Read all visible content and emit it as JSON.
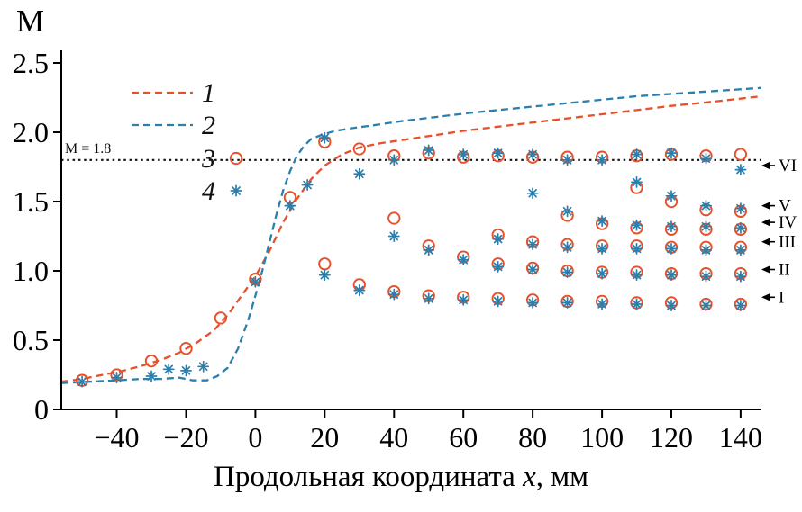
{
  "figure": {
    "y_axis_title": "M",
    "x_title_prefix": "Продольная координата ",
    "x_title_var": "x",
    "x_title_suffix": ", мм"
  },
  "chart_data": {
    "type": "line+scatter",
    "title": "",
    "xlabel": "Продольная координата x, мм",
    "ylabel": "M",
    "xlim": [
      -56,
      146
    ],
    "ylim": [
      0,
      2.5
    ],
    "grid": false,
    "x_tick_values": [
      -40,
      -20,
      0,
      20,
      40,
      60,
      80,
      100,
      120,
      140
    ],
    "x_tick_labels": [
      "−40",
      "−20",
      "0",
      "20",
      "40",
      "60",
      "80",
      "100",
      "120",
      "140"
    ],
    "y_tick_values": [
      0,
      0.5,
      1,
      1.5,
      2,
      2.5
    ],
    "y_tick_labels": [
      "0",
      "0.5",
      "1.0",
      "1.5",
      "2.0",
      "2.5"
    ],
    "reference_line": {
      "y": 1.8,
      "label": "M = 1.8"
    },
    "legend_position": "upper-left-inside",
    "legend": [
      {
        "label": "1",
        "marker": "dashed-line",
        "color": "#e8502a"
      },
      {
        "label": "2",
        "marker": "dashed-line",
        "color": "#2b7fad"
      },
      {
        "label": "3",
        "marker": "open-circle",
        "color": "#e8502a"
      },
      {
        "label": "4",
        "marker": "asterisk",
        "color": "#2b7fad"
      }
    ],
    "series": [
      {
        "name": "1",
        "type": "line",
        "style": "dashed",
        "color": "#e8502a",
        "points": [
          [
            -56,
            0.2
          ],
          [
            -50,
            0.22
          ],
          [
            -44,
            0.25
          ],
          [
            -38,
            0.28
          ],
          [
            -32,
            0.32
          ],
          [
            -27,
            0.36
          ],
          [
            -22,
            0.41
          ],
          [
            -17,
            0.48
          ],
          [
            -12,
            0.57
          ],
          [
            -8,
            0.68
          ],
          [
            -4,
            0.82
          ],
          [
            0,
            0.96
          ],
          [
            4,
            1.14
          ],
          [
            8,
            1.35
          ],
          [
            12,
            1.52
          ],
          [
            16,
            1.66
          ],
          [
            20,
            1.76
          ],
          [
            25,
            1.84
          ],
          [
            30,
            1.89
          ],
          [
            36,
            1.92
          ],
          [
            44,
            1.95
          ],
          [
            52,
            1.98
          ],
          [
            60,
            2.01
          ],
          [
            70,
            2.04
          ],
          [
            80,
            2.07
          ],
          [
            90,
            2.1
          ],
          [
            100,
            2.13
          ],
          [
            110,
            2.16
          ],
          [
            120,
            2.19
          ],
          [
            132,
            2.22
          ],
          [
            146,
            2.26
          ]
        ]
      },
      {
        "name": "2",
        "type": "line",
        "style": "dashed",
        "color": "#2b7fad",
        "points": [
          [
            -56,
            0.19
          ],
          [
            -48,
            0.2
          ],
          [
            -40,
            0.21
          ],
          [
            -33,
            0.22
          ],
          [
            -27,
            0.22
          ],
          [
            -22,
            0.23
          ],
          [
            -18,
            0.21
          ],
          [
            -14,
            0.21
          ],
          [
            -11,
            0.24
          ],
          [
            -8,
            0.3
          ],
          [
            -5,
            0.44
          ],
          [
            -2,
            0.65
          ],
          [
            0,
            0.82
          ],
          [
            2,
            1.0
          ],
          [
            4,
            1.2
          ],
          [
            6,
            1.4
          ],
          [
            8,
            1.58
          ],
          [
            10,
            1.72
          ],
          [
            12,
            1.83
          ],
          [
            14,
            1.9
          ],
          [
            16,
            1.95
          ],
          [
            19,
            1.98
          ],
          [
            23,
            2.01
          ],
          [
            28,
            2.03
          ],
          [
            34,
            2.05
          ],
          [
            42,
            2.08
          ],
          [
            52,
            2.11
          ],
          [
            62,
            2.14
          ],
          [
            74,
            2.17
          ],
          [
            86,
            2.2
          ],
          [
            98,
            2.23
          ],
          [
            110,
            2.26
          ],
          [
            122,
            2.28
          ],
          [
            134,
            2.3
          ],
          [
            146,
            2.32
          ]
        ]
      },
      {
        "name": "3",
        "type": "scatter",
        "marker": "open-circle",
        "color": "#e8502a",
        "points": [
          [
            -50,
            0.21
          ],
          [
            -40,
            0.25
          ],
          [
            -30,
            0.35
          ],
          [
            -20,
            0.44
          ],
          [
            -10,
            0.66
          ],
          [
            0,
            0.94
          ],
          [
            10,
            1.53
          ],
          [
            20,
            1.93
          ],
          [
            30,
            1.88
          ],
          [
            40,
            1.83
          ],
          [
            50,
            1.85
          ],
          [
            60,
            1.82
          ],
          [
            70,
            1.83
          ],
          [
            80,
            1.82
          ],
          [
            90,
            1.82
          ],
          [
            100,
            1.82
          ],
          [
            110,
            1.83
          ],
          [
            120,
            1.84
          ],
          [
            130,
            1.83
          ],
          [
            140,
            1.84
          ],
          [
            110,
            1.6
          ],
          [
            120,
            1.5
          ],
          [
            130,
            1.44
          ],
          [
            140,
            1.43
          ],
          [
            90,
            1.4
          ],
          [
            100,
            1.34
          ],
          [
            110,
            1.31
          ],
          [
            120,
            1.3
          ],
          [
            130,
            1.3
          ],
          [
            140,
            1.3
          ],
          [
            70,
            1.26
          ],
          [
            80,
            1.21
          ],
          [
            90,
            1.19
          ],
          [
            100,
            1.18
          ],
          [
            110,
            1.18
          ],
          [
            120,
            1.17
          ],
          [
            130,
            1.17
          ],
          [
            140,
            1.17
          ],
          [
            40,
            1.38
          ],
          [
            50,
            1.18
          ],
          [
            60,
            1.1
          ],
          [
            70,
            1.05
          ],
          [
            80,
            1.02
          ],
          [
            90,
            1.0
          ],
          [
            100,
            0.99
          ],
          [
            110,
            0.99
          ],
          [
            120,
            0.98
          ],
          [
            130,
            0.98
          ],
          [
            140,
            0.98
          ],
          [
            20,
            1.05
          ],
          [
            30,
            0.9
          ],
          [
            40,
            0.85
          ],
          [
            50,
            0.82
          ],
          [
            60,
            0.81
          ],
          [
            70,
            0.8
          ],
          [
            80,
            0.79
          ],
          [
            90,
            0.78
          ],
          [
            100,
            0.78
          ],
          [
            110,
            0.77
          ],
          [
            120,
            0.77
          ],
          [
            130,
            0.76
          ],
          [
            140,
            0.76
          ]
        ]
      },
      {
        "name": "4",
        "type": "scatter",
        "marker": "asterisk",
        "color": "#2b7fad",
        "points": [
          [
            -50,
            0.2
          ],
          [
            -40,
            0.23
          ],
          [
            -30,
            0.24
          ],
          [
            -25,
            0.29
          ],
          [
            -20,
            0.28
          ],
          [
            -15,
            0.31
          ],
          [
            0,
            0.92
          ],
          [
            10,
            1.47
          ],
          [
            15,
            1.62
          ],
          [
            20,
            1.96
          ],
          [
            30,
            1.7
          ],
          [
            40,
            1.8
          ],
          [
            50,
            1.87
          ],
          [
            60,
            1.84
          ],
          [
            70,
            1.85
          ],
          [
            80,
            1.84
          ],
          [
            90,
            1.8
          ],
          [
            100,
            1.8
          ],
          [
            110,
            1.84
          ],
          [
            120,
            1.85
          ],
          [
            130,
            1.81
          ],
          [
            140,
            1.73
          ],
          [
            110,
            1.64
          ],
          [
            120,
            1.54
          ],
          [
            130,
            1.47
          ],
          [
            140,
            1.45
          ],
          [
            80,
            1.56
          ],
          [
            90,
            1.43
          ],
          [
            100,
            1.36
          ],
          [
            110,
            1.33
          ],
          [
            120,
            1.32
          ],
          [
            130,
            1.32
          ],
          [
            140,
            1.31
          ],
          [
            70,
            1.23
          ],
          [
            80,
            1.19
          ],
          [
            90,
            1.17
          ],
          [
            100,
            1.16
          ],
          [
            110,
            1.16
          ],
          [
            120,
            1.16
          ],
          [
            130,
            1.15
          ],
          [
            140,
            1.15
          ],
          [
            40,
            1.25
          ],
          [
            50,
            1.15
          ],
          [
            60,
            1.08
          ],
          [
            70,
            1.03
          ],
          [
            80,
            1.01
          ],
          [
            90,
            0.99
          ],
          [
            100,
            0.98
          ],
          [
            110,
            0.97
          ],
          [
            120,
            0.97
          ],
          [
            130,
            0.96
          ],
          [
            140,
            0.96
          ],
          [
            20,
            0.97
          ],
          [
            30,
            0.86
          ],
          [
            40,
            0.83
          ],
          [
            50,
            0.8
          ],
          [
            60,
            0.79
          ],
          [
            70,
            0.78
          ],
          [
            80,
            0.77
          ],
          [
            90,
            0.77
          ],
          [
            100,
            0.76
          ],
          [
            110,
            0.76
          ],
          [
            120,
            0.75
          ],
          [
            130,
            0.75
          ],
          [
            140,
            0.75
          ]
        ]
      }
    ],
    "branch_labels": [
      {
        "label": "VI",
        "m": 1.76
      },
      {
        "label": "V",
        "m": 1.47
      },
      {
        "label": "IV",
        "m": 1.35
      },
      {
        "label": "III",
        "m": 1.21
      },
      {
        "label": "II",
        "m": 1.01
      },
      {
        "label": "I",
        "m": 0.81
      }
    ]
  }
}
